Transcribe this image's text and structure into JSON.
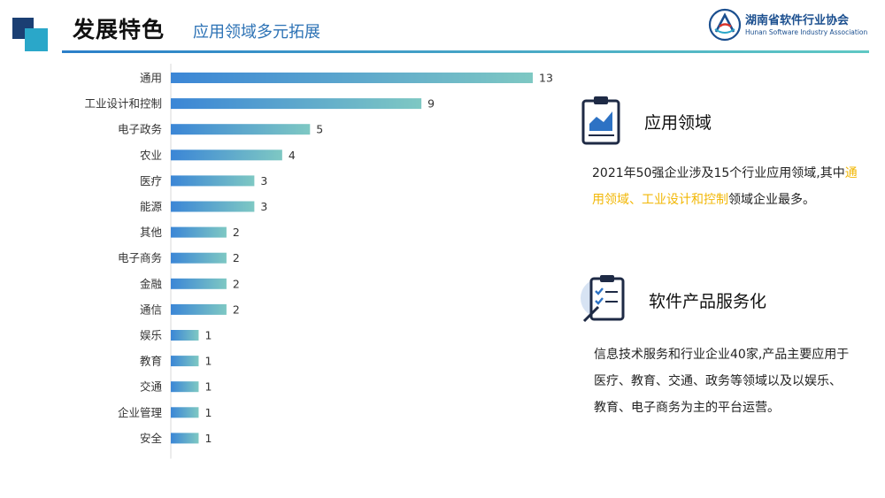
{
  "header": {
    "title": "发展特色",
    "subtitle": "应用领域多元拓展",
    "org_name": "湖南省软件行业协会",
    "org_name_en": "Hunan Software Industry Association"
  },
  "chart_data": {
    "type": "bar",
    "orientation": "horizontal",
    "categories": [
      "通用",
      "工业设计和控制",
      "电子政务",
      "农业",
      "医疗",
      "能源",
      "其他",
      "电子商务",
      "金融",
      "通信",
      "娱乐",
      "教育",
      "交通",
      "企业管理",
      "安全"
    ],
    "values": [
      13,
      9,
      5,
      4,
      3,
      3,
      2,
      2,
      2,
      2,
      1,
      1,
      1,
      1,
      1
    ],
    "xlim": [
      0,
      13
    ],
    "grid": false,
    "colors": {
      "start": "#3b86d6",
      "end": "#7ec8c3"
    }
  },
  "panel1": {
    "icon": "clipboard-chart-icon",
    "title": "应用领域",
    "text_before": "2021年50强企业涉及15个行业应用领域,其中",
    "highlight": "通用领域、工业设计和控制",
    "text_after": "领域企业最多。",
    "highlight_color": "#f2b705"
  },
  "panel2": {
    "icon": "clipboard-checklist-icon",
    "title": "软件产品服务化",
    "text": "信息技术服务和行业企业40家,产品主要应用于医疗、教育、交通、政务等领域以及以娱乐、教育、电子商务为主的平台运营。"
  }
}
